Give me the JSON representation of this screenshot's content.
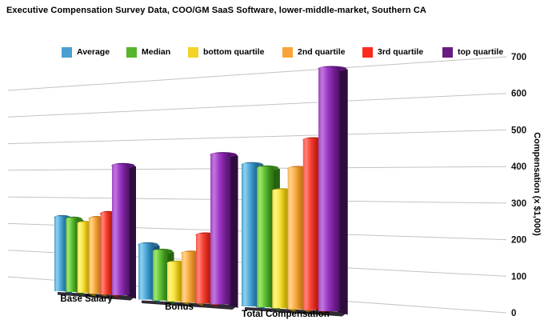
{
  "title": "Executive Compensation Survey Data, COO/GM SaaS Software, lower-middle-market, Southern CA",
  "chart_data": {
    "type": "bar",
    "style": "3d-perspective-columns",
    "title": "Executive Compensation Survey Data, COO/GM SaaS Software, lower-middle-market, Southern CA",
    "categories": [
      "Base Salary",
      "Bonus",
      "Total Compensation"
    ],
    "series": [
      {
        "name": "Average",
        "values": [
          265,
          190,
          415
        ],
        "colors": {
          "swatch": "#4A9FD0",
          "gradient": [
            [
              0,
              "#4E9CC9"
            ],
            [
              0.18,
              "#8ED2F2"
            ],
            [
              0.45,
              "#55ADDC"
            ],
            [
              0.75,
              "#2B7FAF"
            ],
            [
              1,
              "#1D6290"
            ]
          ],
          "side": "#1A5075",
          "cap": "#2D6E94"
        }
      },
      {
        "name": "Median",
        "values": [
          258,
          168,
          405
        ],
        "colors": {
          "swatch": "#56B52C",
          "gradient": [
            [
              0,
              "#66C23B"
            ],
            [
              0.18,
              "#A0E86F"
            ],
            [
              0.45,
              "#64C437"
            ],
            [
              0.75,
              "#3C8F1B"
            ],
            [
              1,
              "#2C7312"
            ]
          ],
          "side": "#256310",
          "cap": "#37811A"
        }
      },
      {
        "name": "bottom quartile",
        "values": [
          242,
          130,
          340
        ],
        "colors": {
          "swatch": "#F2D326",
          "gradient": [
            [
              0,
              "#F6DC4A"
            ],
            [
              0.18,
              "#FFF684"
            ],
            [
              0.45,
              "#F8E23C"
            ],
            [
              0.75,
              "#CDAE0E"
            ],
            [
              1,
              "#AE9404"
            ]
          ],
          "side": "#8F7A02",
          "cap": "#C0A208"
        }
      },
      {
        "name": "2nd quartile",
        "values": [
          257,
          162,
          403
        ],
        "colors": {
          "swatch": "#F9A43A",
          "gradient": [
            [
              0,
              "#F9B159"
            ],
            [
              0.18,
              "#FFD489"
            ],
            [
              0.45,
              "#F9AC45"
            ],
            [
              0.75,
              "#D3821F"
            ],
            [
              1,
              "#B46A14"
            ]
          ],
          "side": "#96570F",
          "cap": "#C17417"
        }
      },
      {
        "name": "3rd quartile",
        "values": [
          272,
          218,
          483
        ],
        "colors": {
          "swatch": "#FB2B1E",
          "gradient": [
            [
              0,
              "#F95548"
            ],
            [
              0.18,
              "#FF847A"
            ],
            [
              0.45,
              "#F84335"
            ],
            [
              0.75,
              "#CC2315"
            ],
            [
              1,
              "#AC1A0C"
            ]
          ],
          "side": "#8E1507",
          "cap": "#B51E10"
        }
      },
      {
        "name": "top quartile",
        "values": [
          425,
          460,
          680
        ],
        "colors": {
          "swatch": "#6A1B83",
          "gradient": [
            [
              0,
              "#A148C3"
            ],
            [
              0.18,
              "#C078DC"
            ],
            [
              0.45,
              "#9C35C4"
            ],
            [
              0.75,
              "#6C1C8A"
            ],
            [
              1,
              "#4E1168"
            ]
          ],
          "side": "#2E0C3D",
          "cap": "#5C1478"
        }
      }
    ],
    "ylabel": "Compensation (x $1,000)",
    "ylim": [
      0,
      700
    ],
    "yticks": [
      0,
      100,
      200,
      300,
      400,
      500,
      600,
      700
    ],
    "legend_position": "top",
    "grid": true,
    "gridline_color": "#c2c2c2",
    "axis_text_color": "#111111",
    "platform_color": "#2F2A33",
    "background": "#ffffff"
  }
}
